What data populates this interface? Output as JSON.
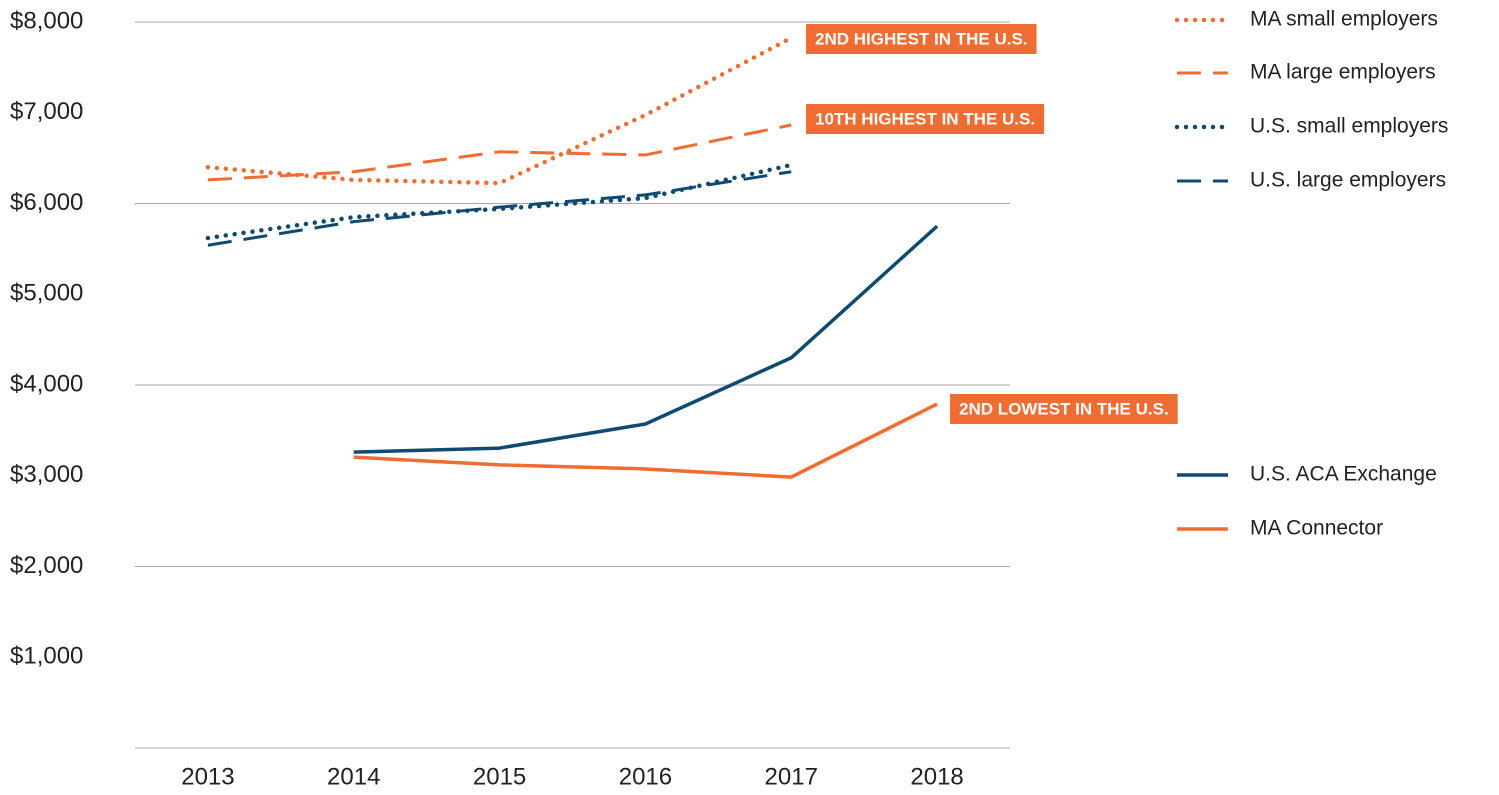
{
  "chart_data": {
    "type": "line",
    "categories": [
      "2013",
      "2014",
      "2015",
      "2016",
      "2017",
      "2018"
    ],
    "ylim": [
      0,
      8000
    ],
    "yticks": [
      {
        "value": 1000,
        "label": "$1,000"
      },
      {
        "value": 2000,
        "label": "$2,000"
      },
      {
        "value": 3000,
        "label": "$3,000"
      },
      {
        "value": 4000,
        "label": "$4,000"
      },
      {
        "value": 5000,
        "label": "$5,000"
      },
      {
        "value": 6000,
        "label": "$6,000"
      },
      {
        "value": 7000,
        "label": "$7,000"
      },
      {
        "value": 8000,
        "label": "$8,000"
      }
    ],
    "grid_lines": [
      0,
      2000,
      4000,
      6000,
      8000
    ],
    "series": [
      {
        "name": "MA small employers",
        "color": "#ef6c32",
        "style": "dotted",
        "values": [
          6400,
          6260,
          6225,
          6975,
          7825,
          null
        ]
      },
      {
        "name": "MA large employers",
        "color": "#ef6c32",
        "style": "dashed",
        "values": [
          6260,
          6350,
          6570,
          6535,
          6865,
          null
        ]
      },
      {
        "name": "U.S. small employers",
        "color": "#0f4a72",
        "style": "dotted",
        "values": [
          5620,
          5850,
          5940,
          6060,
          6425,
          null
        ]
      },
      {
        "name": "U.S. large employers",
        "color": "#0f4a72",
        "style": "dashed",
        "values": [
          5540,
          5800,
          5960,
          6095,
          6350,
          null
        ]
      },
      {
        "name": "U.S. ACA Exchange",
        "color": "#0f4a72",
        "style": "solid",
        "values": [
          null,
          3260,
          3305,
          3570,
          4300,
          5750
        ]
      },
      {
        "name": "MA Connector",
        "color": "#ef6c32",
        "style": "solid",
        "values": [
          null,
          3205,
          3120,
          3075,
          2985,
          3790
        ]
      }
    ],
    "annotations": [
      "2ND HIGHEST IN THE U.S.",
      "10TH HIGHEST IN THE U.S.",
      "2ND LOWEST IN THE U.S."
    ],
    "annotation_color": "#ef6c32"
  }
}
